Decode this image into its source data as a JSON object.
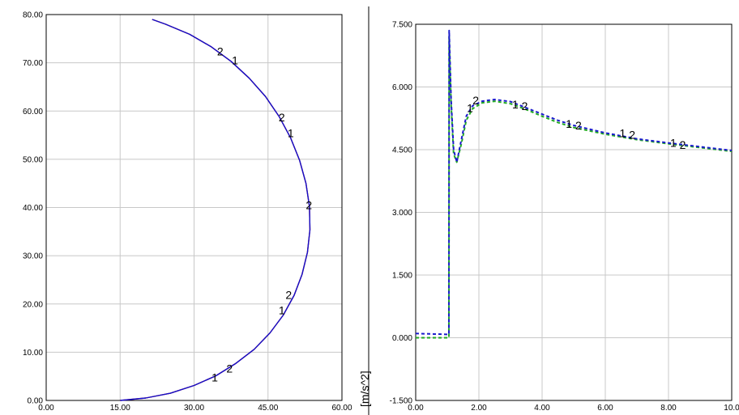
{
  "chart_data": [
    {
      "type": "line",
      "title": "",
      "xlabel": "",
      "ylabel": "",
      "xlim": [
        0,
        60
      ],
      "ylim": [
        0,
        80
      ],
      "grid": true,
      "x_ticks": [
        "0.00",
        "15.00",
        "30.00",
        "45.00",
        "60.00"
      ],
      "y_ticks": [
        "0.00",
        "10.00",
        "20.00",
        "30.00",
        "40.00",
        "50.00",
        "60.00",
        "70.00",
        "80.00"
      ],
      "series": [
        {
          "name": "",
          "color": "#cc0000",
          "style": "solid",
          "x": [
            15.0,
            20.2,
            25.2,
            30.0,
            34.4,
            38.5,
            42.2,
            45.4,
            48.1,
            50.3,
            51.9,
            53.0,
            53.5,
            53.4,
            52.7,
            51.4,
            49.6,
            47.3,
            44.5,
            41.2,
            37.5,
            33.5,
            29.1,
            24.2,
            21.5
          ],
          "y": [
            0.0,
            0.5,
            1.5,
            3.1,
            5.1,
            7.7,
            10.6,
            14.0,
            17.7,
            21.8,
            26.1,
            30.7,
            35.4,
            40.2,
            45.0,
            49.8,
            54.4,
            58.8,
            63.0,
            66.8,
            70.3,
            73.3,
            75.9,
            78.0,
            79.0
          ]
        },
        {
          "name": "",
          "color": "#1010cc",
          "style": "solid",
          "x": [
            15.0,
            20.2,
            25.2,
            30.0,
            34.4,
            38.5,
            42.2,
            45.4,
            48.1,
            50.3,
            51.9,
            53.0,
            53.5,
            53.4,
            52.7,
            51.4,
            49.6,
            47.3,
            44.5,
            41.2,
            37.5,
            33.5,
            29.1,
            24.2,
            21.5
          ],
          "y": [
            0.0,
            0.5,
            1.5,
            3.1,
            5.1,
            7.7,
            10.6,
            14.0,
            17.7,
            21.8,
            26.1,
            30.7,
            35.4,
            40.2,
            45.0,
            49.8,
            54.4,
            58.8,
            63.0,
            66.8,
            70.3,
            73.3,
            75.9,
            78.0,
            79.0
          ]
        }
      ],
      "markers": [
        {
          "text": "1",
          "x": 34.2,
          "y": 4.8
        },
        {
          "text": "2",
          "x": 37.2,
          "y": 6.6
        },
        {
          "text": "1",
          "x": 47.8,
          "y": 18.7
        },
        {
          "text": "2",
          "x": 49.2,
          "y": 21.9
        },
        {
          "text": "2",
          "x": 53.3,
          "y": 40.5
        },
        {
          "text": "1",
          "x": 49.6,
          "y": 55.4
        },
        {
          "text": "2",
          "x": 47.8,
          "y": 58.7
        },
        {
          "text": "1",
          "x": 38.3,
          "y": 70.5
        },
        {
          "text": "2",
          "x": 35.3,
          "y": 72.4
        }
      ]
    },
    {
      "type": "line",
      "title": "",
      "xlabel": "",
      "ylabel": "[m/s^2]",
      "xlim": [
        0,
        10
      ],
      "ylim": [
        -1.5,
        7.5
      ],
      "grid": true,
      "x_ticks": [
        "0.00",
        "2.00",
        "4.00",
        "6.00",
        "8.00",
        "10.0"
      ],
      "y_ticks": [
        "-1.500",
        "0.000",
        "1.500",
        "3.000",
        "4.500",
        "6.000",
        "7.500"
      ],
      "series": [
        {
          "name": "",
          "color": "#22aa22",
          "style": "dashed",
          "x": [
            0.0,
            1.05,
            1.06,
            1.12,
            1.2,
            1.3,
            1.45,
            1.6,
            1.8,
            2.1,
            2.5,
            3.0,
            3.5,
            4.0,
            4.5,
            5.0,
            6.0,
            7.0,
            8.0,
            9.0,
            10.0
          ],
          "y": [
            0.0,
            0.0,
            7.2,
            5.6,
            4.4,
            4.2,
            4.65,
            5.2,
            5.48,
            5.62,
            5.66,
            5.6,
            5.46,
            5.3,
            5.15,
            5.03,
            4.87,
            4.74,
            4.64,
            4.55,
            4.46
          ]
        },
        {
          "name": "",
          "color": "#1a1acc",
          "style": "dashed",
          "x": [
            0.0,
            1.05,
            1.06,
            1.12,
            1.2,
            1.3,
            1.45,
            1.6,
            1.8,
            2.1,
            2.5,
            3.0,
            3.5,
            4.0,
            4.5,
            5.0,
            6.0,
            7.0,
            8.0,
            9.0,
            10.0
          ],
          "y": [
            0.1,
            0.08,
            7.35,
            5.7,
            4.5,
            4.2,
            4.75,
            5.3,
            5.55,
            5.66,
            5.7,
            5.65,
            5.5,
            5.35,
            5.2,
            5.08,
            4.9,
            4.76,
            4.66,
            4.57,
            4.48
          ]
        }
      ],
      "markers": [
        {
          "text": "1",
          "x": 1.72,
          "y": 5.5
        },
        {
          "text": "2",
          "x": 1.9,
          "y": 5.68
        },
        {
          "text": "1",
          "x": 3.15,
          "y": 5.58
        },
        {
          "text": "2",
          "x": 3.45,
          "y": 5.55
        },
        {
          "text": "1",
          "x": 4.85,
          "y": 5.12
        },
        {
          "text": "2",
          "x": 5.15,
          "y": 5.08
        },
        {
          "text": "1",
          "x": 6.55,
          "y": 4.9
        },
        {
          "text": "2",
          "x": 6.85,
          "y": 4.86
        },
        {
          "text": "1",
          "x": 8.15,
          "y": 4.66
        },
        {
          "text": "2",
          "x": 8.45,
          "y": 4.62
        }
      ]
    }
  ]
}
